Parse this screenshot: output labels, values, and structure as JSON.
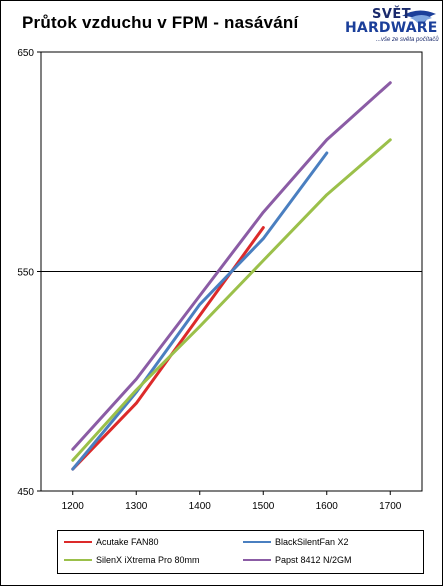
{
  "chart_data": {
    "type": "line",
    "title": "Průtok vzduchu v FPM - nasávání",
    "xlabel": "",
    "ylabel": "",
    "x_ticks": [
      1200,
      1300,
      1400,
      1500,
      1600,
      1700
    ],
    "y_ticks": [
      450,
      550,
      650
    ],
    "ylim": [
      450,
      650
    ],
    "grid": "horizontal line at 550",
    "legend_position": "bottom",
    "series": [
      {
        "name": "Acutake FAN80",
        "color": "#dc2a2a",
        "x": [
          1200,
          1300,
          1400,
          1500
        ],
        "values": [
          460,
          490,
          530,
          570
        ]
      },
      {
        "name": "BlackSilentFan X2",
        "color": "#4a7fc0",
        "x": [
          1200,
          1300,
          1400,
          1500,
          1600
        ],
        "values": [
          460,
          495,
          535,
          565,
          604
        ]
      },
      {
        "name": "SilenX iXtrema Pro 80mm",
        "color": "#9bc04a",
        "x": [
          1200,
          1300,
          1400,
          1500,
          1600,
          1700
        ],
        "values": [
          464,
          496,
          525,
          555,
          585,
          610
        ]
      },
      {
        "name": "Papst 8412 N/2GM",
        "color": "#8b5ca5",
        "x": [
          1200,
          1300,
          1400,
          1500,
          1600,
          1700
        ],
        "values": [
          469,
          501,
          539,
          577,
          610,
          636
        ]
      }
    ]
  },
  "logo": {
    "line1": "SVĚT",
    "line2": "HARDWARE",
    "tagline": "...vše ze světa počítačů"
  }
}
